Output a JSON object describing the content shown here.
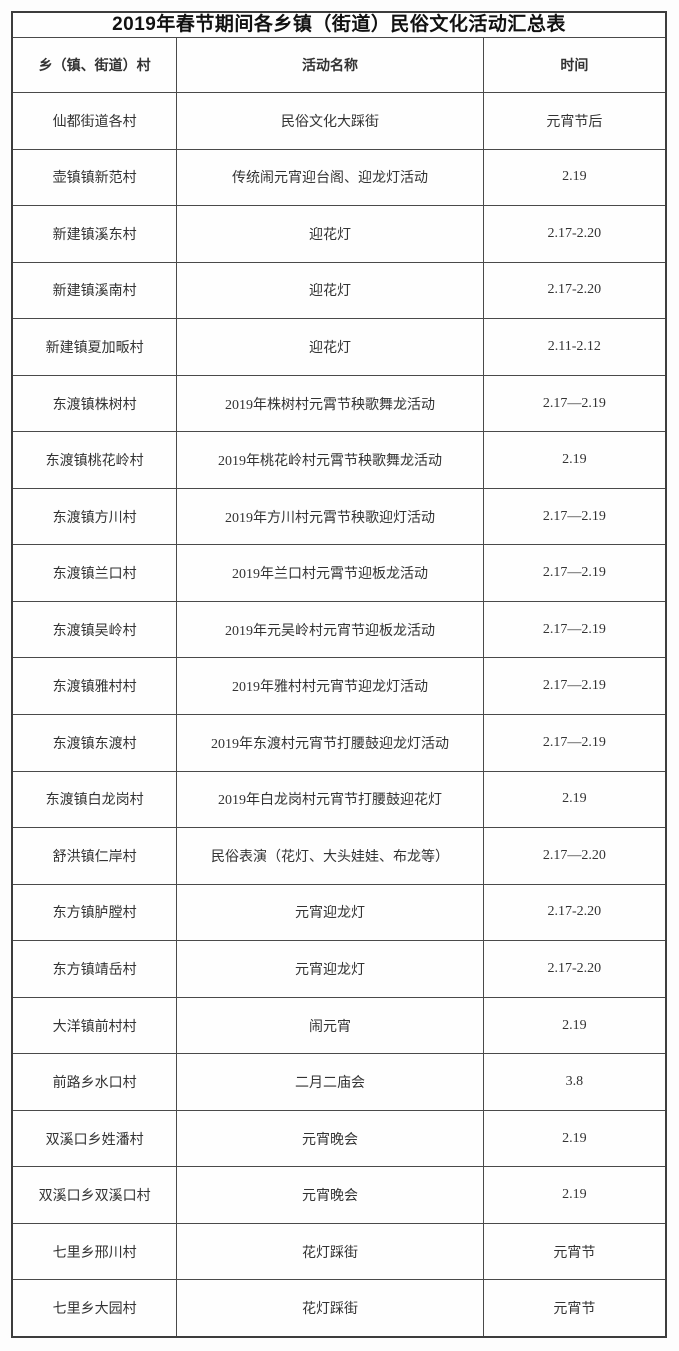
{
  "page": {
    "background": "#fdfdfd",
    "border_color": "#3d3d3d",
    "text_color": "#333333"
  },
  "table": {
    "title": "2019年春节期间各乡镇（街道）民俗文化活动汇总表",
    "columns": [
      "乡（镇、街道）村",
      "活动名称",
      "时间"
    ],
    "rows": [
      {
        "village": "仙都街道各村",
        "activity": "民俗文化大踩街",
        "time": "元宵节后"
      },
      {
        "village": "壶镇镇新范村",
        "activity": "传统闹元宵迎台阁、迎龙灯活动",
        "time": "2.19"
      },
      {
        "village": "新建镇溪东村",
        "activity": "迎花灯",
        "time": "2.17-2.20"
      },
      {
        "village": "新建镇溪南村",
        "activity": "迎花灯",
        "time": "2.17-2.20"
      },
      {
        "village": "新建镇夏加畈村",
        "activity": "迎花灯",
        "time": "2.11-2.12"
      },
      {
        "village": "东渡镇株树村",
        "activity": "2019年株树村元霄节秧歌舞龙活动",
        "time": "2.17—2.19"
      },
      {
        "village": "东渡镇桃花岭村",
        "activity": "2019年桃花岭村元霄节秧歌舞龙活动",
        "time": "2.19"
      },
      {
        "village": "东渡镇方川村",
        "activity": "2019年方川村元霄节秧歌迎灯活动",
        "time": "2.17—2.19"
      },
      {
        "village": "东渡镇兰口村",
        "activity": "2019年兰口村元霄节迎板龙活动",
        "time": "2.17—2.19"
      },
      {
        "village": "东渡镇吴岭村",
        "activity": "2019年元吴岭村元宵节迎板龙活动",
        "time": "2.17—2.19"
      },
      {
        "village": "东渡镇雅村村",
        "activity": "2019年雅村村元宵节迎龙灯活动",
        "time": "2.17—2.19"
      },
      {
        "village": "东渡镇东渡村",
        "activity": "2019年东渡村元宵节打腰鼓迎龙灯活动",
        "time": "2.17—2.19"
      },
      {
        "village": "东渡镇白龙岗村",
        "activity": "2019年白龙岗村元宵节打腰鼓迎花灯",
        "time": "2.19"
      },
      {
        "village": "舒洪镇仁岸村",
        "activity": "民俗表演（花灯、大头娃娃、布龙等）",
        "time": "2.17—2.20"
      },
      {
        "village": "东方镇胪膛村",
        "activity": "元宵迎龙灯",
        "time": "2.17-2.20"
      },
      {
        "village": "东方镇靖岳村",
        "activity": "元宵迎龙灯",
        "time": "2.17-2.20"
      },
      {
        "village": "大洋镇前村村",
        "activity": "闹元宵",
        "time": "2.19"
      },
      {
        "village": "前路乡水口村",
        "activity": "二月二庙会",
        "time": "3.8"
      },
      {
        "village": "双溪口乡姓潘村",
        "activity": "元宵晚会",
        "time": "2.19"
      },
      {
        "village": "双溪口乡双溪口村",
        "activity": "元宵晚会",
        "time": "2.19"
      },
      {
        "village": "七里乡邢川村",
        "activity": "花灯踩街",
        "time": "元宵节"
      },
      {
        "village": "七里乡大园村",
        "activity": "花灯踩街",
        "time": "元宵节"
      }
    ]
  }
}
